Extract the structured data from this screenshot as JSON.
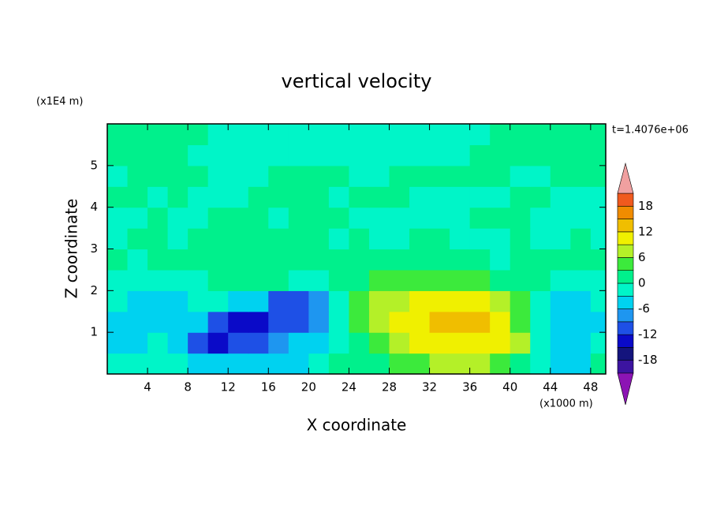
{
  "chart_data": {
    "type": "contour",
    "title": "vertical velocity",
    "x_label": "X coordinate",
    "y_label": "Z coordinate",
    "x_unit": "(x1000 m)",
    "y_unit": "(x1E4 m)",
    "annotation": "t=1.4076e+06",
    "xlim": [
      0,
      49.5
    ],
    "ylim": [
      0,
      6
    ],
    "xticks": [
      4,
      8,
      12,
      16,
      20,
      24,
      28,
      32,
      36,
      40,
      44,
      48
    ],
    "yticks": [
      1,
      2,
      3,
      4,
      5
    ],
    "x": [
      1,
      3,
      5,
      7,
      9,
      11,
      13,
      15,
      17,
      19,
      21,
      23,
      25,
      27,
      29,
      31,
      33,
      35,
      37,
      39,
      41,
      43,
      45,
      47,
      49
    ],
    "y": [
      0.25,
      0.75,
      1.25,
      1.75,
      2.25,
      2.75,
      3.25,
      3.75,
      4.25,
      4.75,
      5.25,
      5.75
    ],
    "values": [
      [
        -2,
        -2,
        -2,
        -3,
        -4,
        -4,
        -4,
        -5,
        -4,
        -4,
        -3,
        1,
        1,
        2,
        4,
        5,
        6,
        7,
        6,
        5,
        2,
        -2,
        -4,
        -4,
        1
      ],
      [
        -4,
        -5,
        -3,
        -5,
        -11,
        -13,
        -12,
        -10,
        -8,
        -6,
        -4,
        -1,
        2,
        5,
        8,
        10,
        11,
        11,
        11,
        10,
        6,
        -2,
        -5,
        -6,
        -3
      ],
      [
        -4,
        -5,
        -5,
        -5,
        -6,
        -10,
        -13,
        -14,
        -12,
        -11,
        -7,
        -2,
        3,
        6,
        9,
        11,
        14,
        14,
        13,
        10,
        5,
        -2,
        -6,
        -6,
        -4
      ],
      [
        -3,
        -4,
        -4,
        -4,
        -3,
        -3,
        -4,
        -6,
        -11,
        -12,
        -8,
        -1,
        3,
        6,
        8,
        9,
        10,
        10,
        9,
        7,
        3,
        -1,
        -4,
        -5,
        -3
      ],
      [
        -1,
        -2,
        -1,
        -1,
        -1,
        1,
        1,
        2,
        1,
        -2,
        -1,
        1,
        1,
        3,
        4,
        4,
        4,
        4,
        3,
        2,
        1,
        1,
        -1,
        -1,
        -1
      ],
      [
        1,
        -1,
        1,
        1,
        1,
        1,
        2,
        1,
        1,
        1,
        1,
        1,
        1,
        1,
        1,
        1,
        1,
        1,
        1,
        -1,
        1,
        1,
        1,
        1,
        1
      ],
      [
        -1,
        1,
        1,
        -1,
        1,
        1,
        1,
        1,
        1,
        1,
        1,
        -1,
        1,
        -1,
        -1,
        1,
        1,
        -1,
        -1,
        -1,
        1,
        -1,
        -1,
        1,
        -1
      ],
      [
        -1,
        -1,
        1,
        -1,
        -1,
        1,
        1,
        1,
        -1,
        1,
        1,
        1,
        -1,
        -1,
        -1,
        -1,
        -1,
        -1,
        1,
        1,
        1,
        -1,
        -1,
        -1,
        -1
      ],
      [
        1,
        1,
        -1,
        1,
        -1,
        -1,
        -1,
        1,
        1,
        1,
        1,
        -1,
        1,
        1,
        1,
        -1,
        -1,
        -1,
        -1,
        -1,
        1,
        1,
        -1,
        -1,
        -1
      ],
      [
        -1,
        1,
        1,
        1,
        1,
        -1,
        -1,
        -1,
        1,
        1,
        1,
        1,
        -1,
        -1,
        1,
        1,
        1,
        1,
        1,
        1,
        -1,
        -1,
        1,
        1,
        1
      ],
      [
        1,
        1,
        1,
        1,
        -1,
        -1,
        -1,
        -1,
        -1,
        -1,
        -1,
        -1,
        -1,
        -1,
        -1,
        -1,
        -1,
        -1,
        1,
        1,
        1,
        1,
        1,
        1,
        1
      ],
      [
        1,
        1,
        1,
        1,
        1,
        -1,
        -1,
        -1,
        -1,
        -1,
        -1,
        -1,
        -1,
        -1,
        -1,
        -1,
        -1,
        -1,
        -1,
        1,
        1,
        1,
        1,
        1,
        1
      ]
    ],
    "levels": [
      -21,
      -18,
      -15,
      -12,
      -9,
      -6,
      -3,
      0,
      3,
      6,
      9,
      12,
      15,
      18,
      21
    ],
    "colors": [
      "#3c14a0",
      "#14147d",
      "#0a0ac8",
      "#1e50e6",
      "#1e96f0",
      "#00d2f0",
      "#00f5c8",
      "#00f08c",
      "#3cea3c",
      "#b4f028",
      "#f0f000",
      "#f0be00",
      "#f08c00",
      "#f05a1e"
    ],
    "below_color": "#8c14b4",
    "above_color": "#f0a0a0",
    "cbar_ticks": [
      -18,
      -12,
      -6,
      0,
      6,
      12,
      18
    ]
  }
}
